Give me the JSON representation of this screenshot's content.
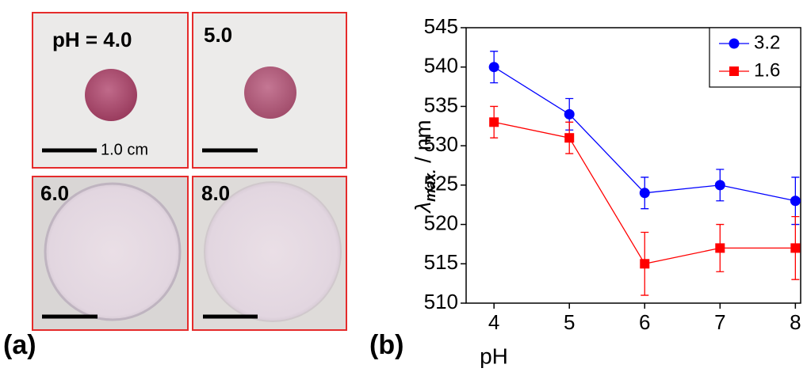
{
  "panel_a": {
    "label": "(a)",
    "photos": [
      {
        "label": "pH = 4.0"
      },
      {
        "label": "5.0"
      },
      {
        "label": "6.0"
      },
      {
        "label": "8.0"
      }
    ],
    "scale_bar": "1.0 cm"
  },
  "chart_data": {
    "type": "line",
    "panel_label": "(b)",
    "xlabel": "pH",
    "ylabel": {
      "symbol": "λ",
      "subscript": "max.",
      "unit": "/ nm"
    },
    "x": [
      4,
      5,
      6,
      7,
      8
    ],
    "series": [
      {
        "name": "3.2",
        "color": "#0000ff",
        "marker": "circle",
        "values": [
          540,
          534,
          524,
          525,
          523
        ],
        "errors": [
          2,
          2,
          2,
          2,
          3
        ]
      },
      {
        "name": "1.6",
        "color": "#ff0000",
        "marker": "square",
        "values": [
          533,
          531,
          515,
          517,
          517
        ],
        "errors": [
          2,
          2,
          4,
          3,
          4
        ]
      }
    ],
    "xlim": [
      3.63,
      8.07
    ],
    "xticks": [
      4,
      5,
      6,
      7,
      8
    ],
    "ylim": [
      510,
      545
    ],
    "yticks": [
      510,
      515,
      520,
      525,
      530,
      535,
      540,
      545
    ],
    "legend": "upper right"
  }
}
